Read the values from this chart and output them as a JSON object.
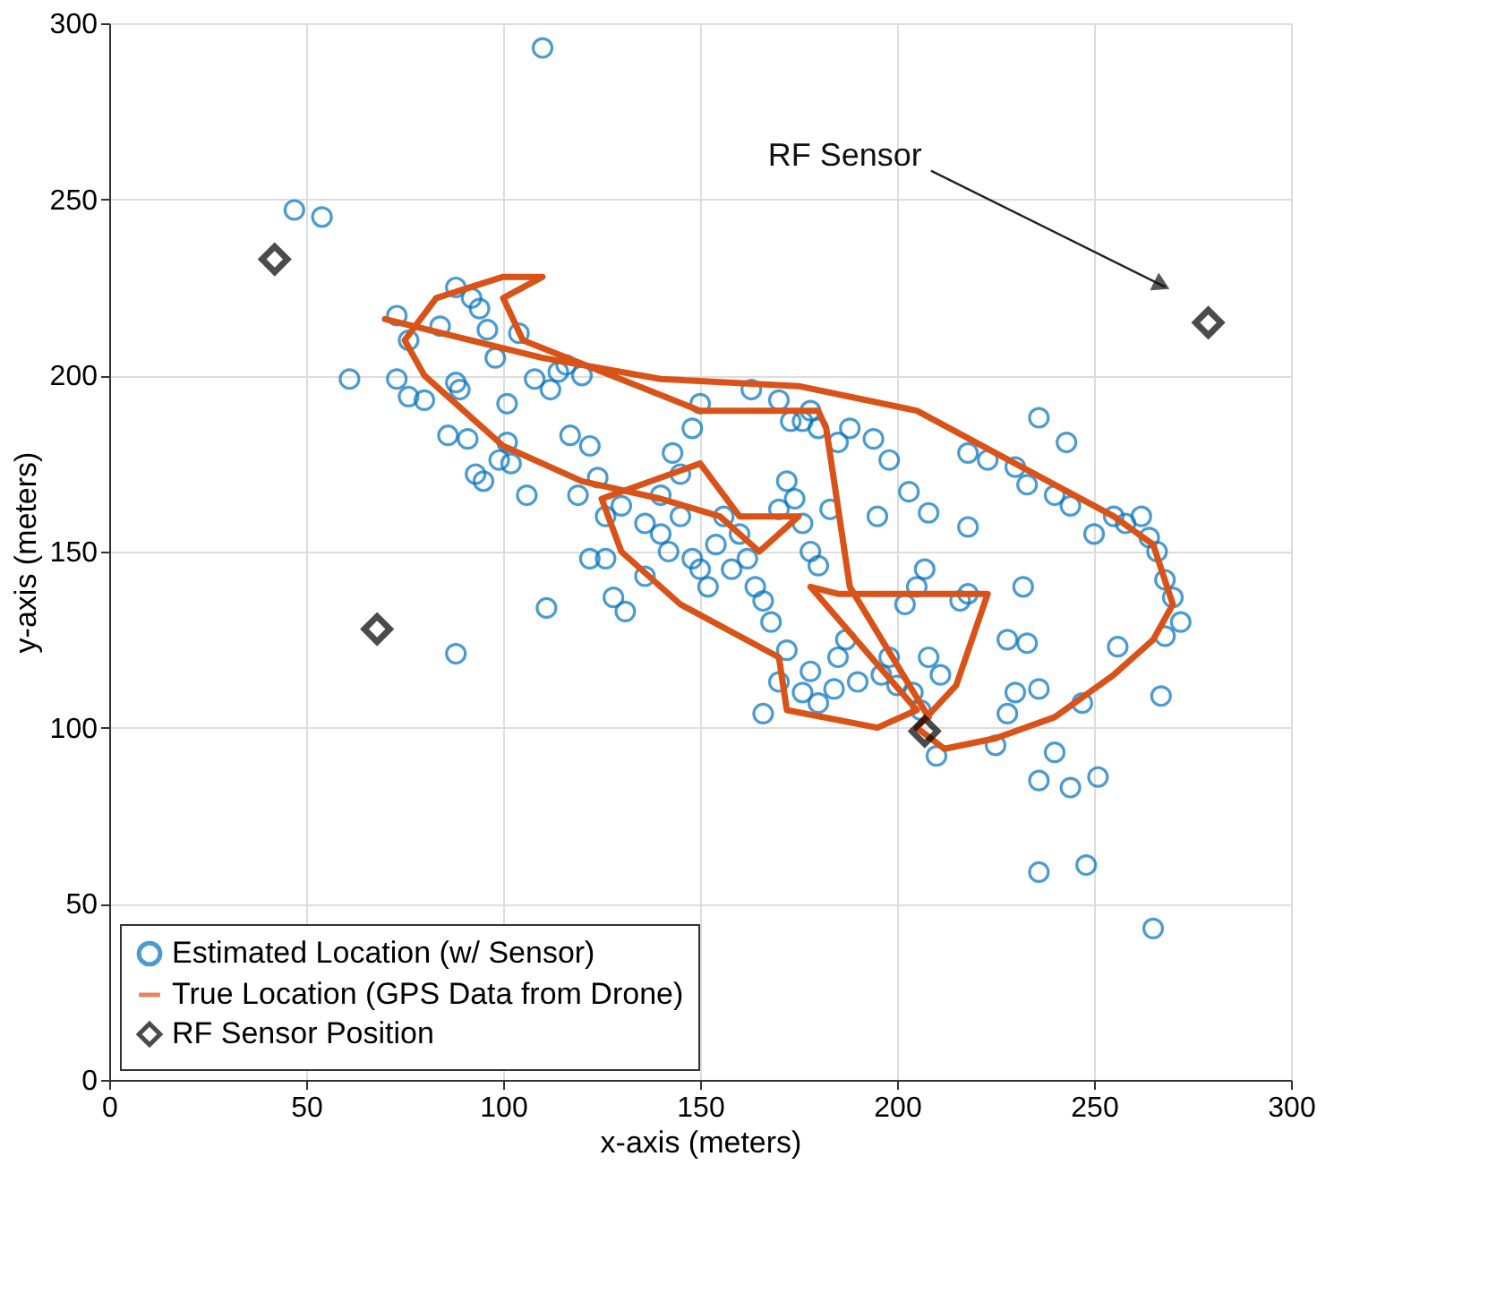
{
  "chart_data": {
    "type": "scatter",
    "xlabel": "x-axis (meters)",
    "ylabel": "y-axis (meters)",
    "xlim": [
      0,
      300
    ],
    "ylim": [
      0,
      300
    ],
    "xticks": [
      0,
      50,
      100,
      150,
      200,
      250,
      300
    ],
    "yticks": [
      0,
      50,
      100,
      150,
      200,
      250,
      300
    ],
    "grid": true,
    "legend": "bottom left",
    "annotations": [
      "RF Sensor"
    ],
    "series": [
      {
        "name": "Estimated Location (w/ Sensor)",
        "type": "scatter",
        "marker": "circle",
        "color": "#0072bd",
        "x": [
          110,
          47,
          54,
          61,
          88,
          111,
          73,
          76,
          73,
          76,
          80,
          84,
          88,
          92,
          94,
          96,
          98,
          101,
          104,
          88,
          89,
          86,
          91,
          93,
          95,
          99,
          102,
          101,
          106,
          108,
          112,
          114,
          116,
          120,
          117,
          122,
          124,
          119,
          126,
          130,
          122,
          126,
          128,
          131,
          136,
          140,
          145,
          143,
          148,
          150,
          136,
          140,
          142,
          145,
          148,
          150,
          152,
          154,
          156,
          158,
          160,
          162,
          164,
          166,
          168,
          170,
          172,
          174,
          176,
          178,
          180,
          163,
          170,
          173,
          176,
          178,
          180,
          188,
          194,
          198,
          203,
          208,
          195,
          185,
          183,
          172,
          166,
          170,
          178,
          180,
          184,
          176,
          185,
          187,
          190,
          196,
          200,
          204,
          206,
          198,
          202,
          205,
          207,
          208,
          211,
          210,
          216,
          218,
          225,
          228,
          230,
          236,
          236,
          240,
          244,
          247,
          251,
          228,
          233,
          232,
          218,
          223,
          230,
          233,
          240,
          244,
          250,
          255,
          258,
          262,
          264,
          266,
          268,
          270,
          272,
          268,
          267,
          256,
          236,
          248,
          265,
          236,
          243,
          218
        ],
        "values": [
          293,
          247,
          245,
          199,
          121,
          134,
          217,
          210,
          199,
          194,
          193,
          214,
          225,
          222,
          219,
          213,
          205,
          192,
          212,
          198,
          196,
          183,
          182,
          172,
          170,
          176,
          175,
          181,
          166,
          199,
          196,
          201,
          203,
          200,
          183,
          180,
          171,
          166,
          160,
          163,
          148,
          148,
          137,
          133,
          143,
          166,
          172,
          178,
          185,
          192,
          158,
          155,
          150,
          160,
          148,
          145,
          140,
          152,
          160,
          145,
          155,
          148,
          140,
          136,
          130,
          162,
          170,
          165,
          158,
          150,
          146,
          196,
          193,
          187,
          187,
          190,
          185,
          185,
          182,
          176,
          167,
          161,
          160,
          181,
          162,
          122,
          104,
          113,
          116,
          107,
          111,
          110,
          120,
          125,
          113,
          115,
          112,
          110,
          105,
          120,
          135,
          140,
          145,
          120,
          115,
          92,
          136,
          138,
          95,
          104,
          110,
          111,
          85,
          93,
          83,
          107,
          86,
          125,
          124,
          140,
          178,
          176,
          174,
          169,
          166,
          163,
          155,
          160,
          158,
          160,
          154,
          150,
          142,
          137,
          130,
          126,
          109,
          123,
          59,
          61,
          43,
          188,
          181,
          157
        ]
      },
      {
        "name": "True Location (GPS Data from Drone)",
        "type": "line",
        "marker": "none",
        "line_style": "solid",
        "color": "#d95319",
        "x": [
          70,
          110,
          140,
          175,
          205,
          255,
          265,
          270,
          265,
          255,
          240,
          225,
          212,
          205,
          215,
          223,
          185,
          178,
          205,
          195,
          172,
          170,
          145,
          130,
          125,
          150,
          160,
          175,
          165,
          155,
          140,
          120,
          100,
          80,
          75,
          83,
          100,
          110,
          100,
          105,
          150,
          180,
          182,
          188,
          208
        ],
        "values": [
          216,
          205,
          199,
          197,
          190,
          160,
          152,
          135,
          125,
          115,
          103,
          97,
          94,
          100,
          112,
          138,
          138,
          140,
          105,
          100,
          105,
          120,
          135,
          150,
          165,
          175,
          160,
          160,
          150,
          160,
          165,
          170,
          180,
          200,
          210,
          222,
          228,
          228,
          222,
          210,
          190,
          190,
          185,
          140,
          103
        ]
      },
      {
        "name": "RF Sensor Position",
        "type": "scatter",
        "marker": "diamond",
        "color": "#000000",
        "x": [
          42,
          68,
          207,
          279
        ],
        "values": [
          233,
          128,
          99,
          215
        ]
      }
    ]
  }
}
